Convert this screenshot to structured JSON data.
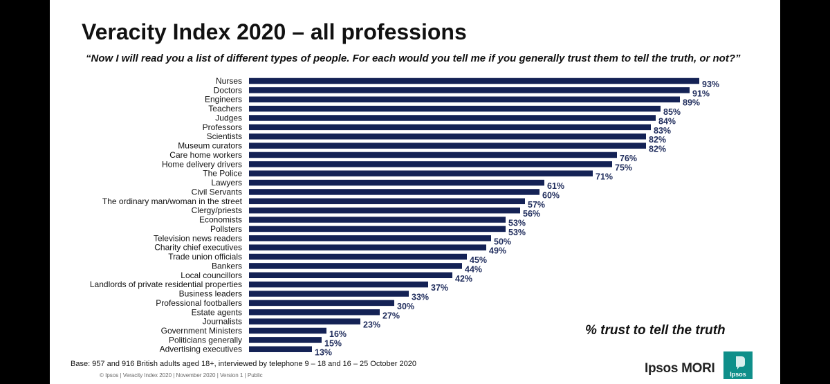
{
  "header": {
    "title": "Veracity Index 2020 – all professions",
    "subtitle": "“Now I will read you a list of different types of people. For each would you tell me if you generally trust them to tell the truth, or not?”"
  },
  "chart_data": {
    "type": "bar",
    "orientation": "horizontal",
    "categories": [
      "Nurses",
      "Doctors",
      "Engineers",
      "Teachers",
      "Judges",
      "Professors",
      "Scientists",
      "Museum curators",
      "Care home workers",
      "Home delivery drivers",
      "The Police",
      "Lawyers",
      "Civil Servants",
      "The ordinary man/woman in the street",
      "Clergy/priests",
      "Economists",
      "Pollsters",
      "Television news readers",
      "Charity chief executives",
      "Trade union officials",
      "Bankers",
      "Local councillors",
      "Landlords of private residential properties",
      "Business leaders",
      "Professional footballers",
      "Estate agents",
      "Journalists",
      "Government Ministers",
      "Politicians generally",
      "Advertising executives"
    ],
    "values": [
      93,
      91,
      89,
      85,
      84,
      83,
      82,
      82,
      76,
      75,
      71,
      61,
      60,
      57,
      56,
      53,
      53,
      50,
      49,
      45,
      44,
      42,
      37,
      33,
      30,
      27,
      23,
      16,
      15,
      13
    ],
    "value_labels": [
      "93%",
      "91%",
      "89%",
      "85%",
      "84%",
      "83%",
      "82%",
      "82%",
      "76%",
      "75%",
      "71%",
      "61%",
      "60%",
      "57%",
      "56%",
      "53%",
      "53%",
      "50%",
      "49%",
      "45%",
      "44%",
      "42%",
      "37%",
      "33%",
      "30%",
      "27%",
      "23%",
      "16%",
      "15%",
      "13%"
    ],
    "xlim": [
      0,
      100
    ],
    "bar_color": "#142255",
    "label_color": "#1f2c5c",
    "grid": false,
    "annotation": "% trust to tell the truth"
  },
  "footer": {
    "base": "Base: 957 and 916 British adults aged 18+, interviewed by telephone 9 – 18 and 16 – 25 October 2020",
    "copyright": "© Ipsos | Veracity Index 2020 | November 2020 | Version 1 | Public"
  },
  "brand": {
    "name": "Ipsos MORI",
    "logo_text": "Ipsos",
    "logo_color": "#0f8f8a"
  }
}
